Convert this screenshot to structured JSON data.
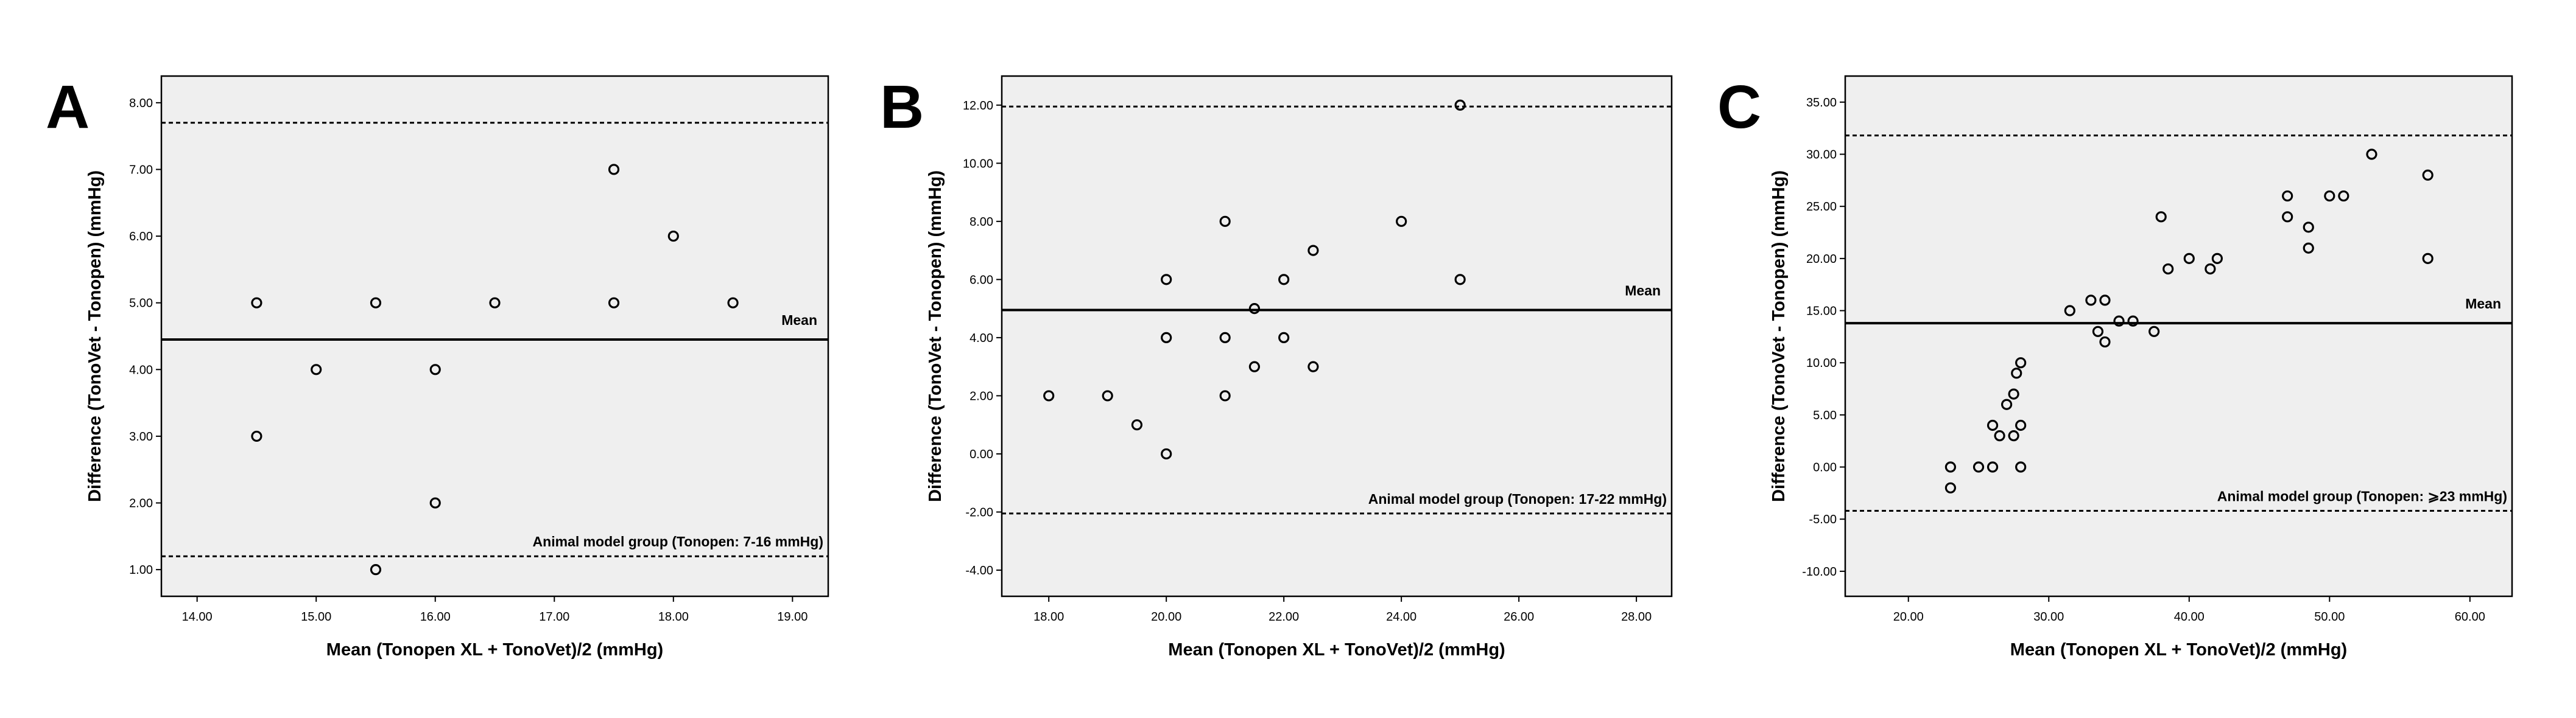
{
  "colors": {
    "plot_background": "#efefef",
    "plot_border": "#000000",
    "marker": "#000000",
    "page": "#ffffff"
  },
  "chart_data": [
    {
      "type": "scatter",
      "panel": "A",
      "xlabel": "Mean (Tonopen XL + TonoVet)/2 (mmHg)",
      "ylabel": "Difference (TonoVet - Tonopen) (mmHg)",
      "xlim": [
        13.7,
        19.3
      ],
      "ylim": [
        0.6,
        8.4
      ],
      "x_ticks": [
        14,
        15,
        16,
        17,
        18,
        19
      ],
      "x_tick_labels": [
        "14.00",
        "15.00",
        "16.00",
        "17.00",
        "18.00",
        "19.00"
      ],
      "y_ticks": [
        1,
        2,
        3,
        4,
        5,
        6,
        7,
        8
      ],
      "y_tick_labels": [
        "1.00",
        "2.00",
        "3.00",
        "4.00",
        "5.00",
        "6.00",
        "7.00",
        "8.00"
      ],
      "mean_line": 4.45,
      "upper_limit": 7.7,
      "lower_limit": 1.2,
      "mean_label": "Mean",
      "group_label": "Animal model group (Tonopen: 7-16 mmHg)",
      "grid": false,
      "points": [
        {
          "x": 14.5,
          "y": 5
        },
        {
          "x": 14.5,
          "y": 3
        },
        {
          "x": 15.0,
          "y": 4
        },
        {
          "x": 15.5,
          "y": 5
        },
        {
          "x": 15.5,
          "y": 1
        },
        {
          "x": 16.0,
          "y": 4
        },
        {
          "x": 16.0,
          "y": 2
        },
        {
          "x": 16.5,
          "y": 5
        },
        {
          "x": 17.5,
          "y": 7
        },
        {
          "x": 17.5,
          "y": 5
        },
        {
          "x": 18.0,
          "y": 6
        },
        {
          "x": 18.5,
          "y": 5
        }
      ]
    },
    {
      "type": "scatter",
      "panel": "B",
      "xlabel": "Mean (Tonopen XL + TonoVet)/2 (mmHg)",
      "ylabel": "Difference (TonoVet - Tonopen) (mmHg)",
      "xlim": [
        17.2,
        28.6
      ],
      "ylim": [
        -4.9,
        13.0
      ],
      "x_ticks": [
        18,
        20,
        22,
        24,
        26,
        28
      ],
      "x_tick_labels": [
        "18.00",
        "20.00",
        "22.00",
        "24.00",
        "26.00",
        "28.00"
      ],
      "y_ticks": [
        -4,
        -2,
        0,
        2,
        4,
        6,
        8,
        10,
        12
      ],
      "y_tick_labels": [
        "-4.00",
        "-2.00",
        "0.00",
        "2.00",
        "4.00",
        "6.00",
        "8.00",
        "10.00",
        "12.00"
      ],
      "mean_line": 4.95,
      "upper_limit": 11.95,
      "lower_limit": -2.05,
      "mean_label": "Mean",
      "group_label": "Animal model group (Tonopen: 17-22 mmHg)",
      "grid": false,
      "points": [
        {
          "x": 18.0,
          "y": 2
        },
        {
          "x": 19.0,
          "y": 2
        },
        {
          "x": 19.5,
          "y": 1
        },
        {
          "x": 20.0,
          "y": 6
        },
        {
          "x": 20.0,
          "y": 4
        },
        {
          "x": 20.0,
          "y": 0
        },
        {
          "x": 21.0,
          "y": 8
        },
        {
          "x": 21.0,
          "y": 4
        },
        {
          "x": 21.0,
          "y": 2
        },
        {
          "x": 21.5,
          "y": 5
        },
        {
          "x": 21.5,
          "y": 3
        },
        {
          "x": 22.0,
          "y": 6
        },
        {
          "x": 22.0,
          "y": 4
        },
        {
          "x": 22.5,
          "y": 7
        },
        {
          "x": 22.5,
          "y": 3
        },
        {
          "x": 24.0,
          "y": 8
        },
        {
          "x": 25.0,
          "y": 12
        },
        {
          "x": 25.0,
          "y": 6
        }
      ]
    },
    {
      "type": "scatter",
      "panel": "C",
      "xlabel": "Mean (Tonopen XL + TonoVet)/2 (mmHg)",
      "ylabel": "Difference (TonoVet - Tonopen) (mmHg)",
      "xlim": [
        15.5,
        63.0
      ],
      "ylim": [
        -12.4,
        37.5
      ],
      "x_ticks": [
        20,
        30,
        40,
        50,
        60
      ],
      "x_tick_labels": [
        "20.00",
        "30.00",
        "40.00",
        "50.00",
        "60.00"
      ],
      "y_ticks": [
        -10,
        -5,
        0,
        5,
        10,
        15,
        20,
        25,
        30,
        35
      ],
      "y_tick_labels": [
        "-10.00",
        "-5.00",
        "0.00",
        "5.00",
        "10.00",
        "15.00",
        "20.00",
        "25.00",
        "30.00",
        "35.00"
      ],
      "mean_line": 13.8,
      "upper_limit": 31.8,
      "lower_limit": -4.2,
      "mean_label": "Mean",
      "group_label": "Animal model group (Tonopen: ⩾23 mmHg)",
      "grid": false,
      "points": [
        {
          "x": 23.0,
          "y": 0
        },
        {
          "x": 23.0,
          "y": -2
        },
        {
          "x": 25.0,
          "y": 0
        },
        {
          "x": 26.0,
          "y": 4
        },
        {
          "x": 26.0,
          "y": 0
        },
        {
          "x": 26.5,
          "y": 3
        },
        {
          "x": 27.0,
          "y": 6
        },
        {
          "x": 27.5,
          "y": 7
        },
        {
          "x": 27.5,
          "y": 3
        },
        {
          "x": 27.7,
          "y": 9
        },
        {
          "x": 28.0,
          "y": 10
        },
        {
          "x": 28.0,
          "y": 4
        },
        {
          "x": 28.0,
          "y": 0
        },
        {
          "x": 31.5,
          "y": 15
        },
        {
          "x": 33.0,
          "y": 16
        },
        {
          "x": 33.5,
          "y": 13
        },
        {
          "x": 34.0,
          "y": 16
        },
        {
          "x": 34.0,
          "y": 12
        },
        {
          "x": 35.0,
          "y": 14
        },
        {
          "x": 36.0,
          "y": 14
        },
        {
          "x": 37.5,
          "y": 13
        },
        {
          "x": 38.0,
          "y": 24
        },
        {
          "x": 38.5,
          "y": 19
        },
        {
          "x": 40.0,
          "y": 20
        },
        {
          "x": 41.5,
          "y": 19
        },
        {
          "x": 42.0,
          "y": 20
        },
        {
          "x": 47.0,
          "y": 26
        },
        {
          "x": 47.0,
          "y": 24
        },
        {
          "x": 48.5,
          "y": 23
        },
        {
          "x": 48.5,
          "y": 21
        },
        {
          "x": 50.0,
          "y": 26
        },
        {
          "x": 51.0,
          "y": 26
        },
        {
          "x": 53.0,
          "y": 30
        },
        {
          "x": 57.0,
          "y": 28
        },
        {
          "x": 57.0,
          "y": 20
        }
      ]
    }
  ]
}
